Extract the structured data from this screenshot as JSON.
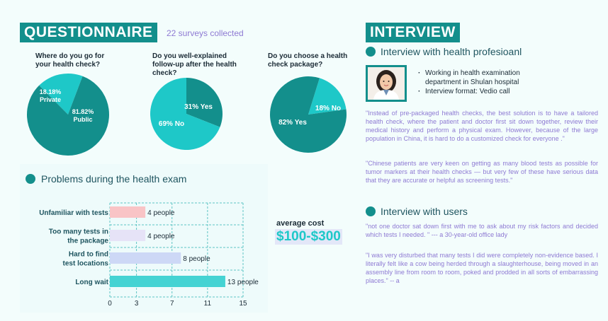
{
  "questionnaire": {
    "title": "QUESTIONNAIRE",
    "surveys": "22 surveys collected",
    "questions": [
      {
        "question": "Where do you go for your health check?",
        "slices": [
          {
            "label": "Private",
            "value": "18.18%",
            "fraction": 0.1818,
            "color": "#1ec8c8"
          },
          {
            "label": "Public",
            "value": "81.82%",
            "fraction": 0.8182,
            "color": "#138f8c"
          }
        ]
      },
      {
        "question": "Do you well-explained follow-up after the health check?",
        "slices": [
          {
            "label": "Yes",
            "value": "31%",
            "fraction": 0.31,
            "color": "#138f8c"
          },
          {
            "label": "No",
            "value": "69%",
            "fraction": 0.69,
            "color": "#1ec8c8"
          }
        ]
      },
      {
        "question": "Do you choose a health check package?",
        "slices": [
          {
            "label": "No",
            "value": "18%",
            "fraction": 0.18,
            "color": "#1ec8c8"
          },
          {
            "label": "Yes",
            "value": "82%",
            "fraction": 0.82,
            "color": "#138f8c"
          }
        ]
      }
    ]
  },
  "problems": {
    "title": "Problems during the health exam",
    "chart_data": {
      "type": "bar",
      "orientation": "horizontal",
      "categories": [
        "Unfamiliar with tests",
        "Too many tests in the package",
        "Hard to find test locations",
        "Long wait"
      ],
      "values": [
        4,
        4,
        8,
        13
      ],
      "value_labels": [
        "4 people",
        "4 people",
        "8 people",
        "13 people"
      ],
      "colors": [
        "#f9c4c6",
        "#e6e3f7",
        "#cdd8f6",
        "#45d3d3"
      ],
      "xticks": [
        0,
        3,
        7,
        11,
        15
      ],
      "xlim": [
        0,
        15
      ],
      "grid": true,
      "grid_style": "dashed",
      "grid_color": "#5fc4c4"
    }
  },
  "cost": {
    "label": "average cost",
    "value": "$100-$300"
  },
  "interview": {
    "title": "INTERVIEW",
    "professional": {
      "title": "Interview with health profesioanl",
      "bullets": [
        "Working in health examination department in Shulan hospital",
        "Interview format: Vedio call"
      ],
      "quotes": [
        "\"Instead of pre-packaged health checks, the best solution is to have a tailored health check, where the patient and doctor first sit down together, review their medical history and perform a physical exam. However, because of the large population in China, it is hard to do a customized check for everyone .\"",
        "\"Chinese patients are very keen on getting as many blood tests as possible for tumor markers at their health checks — but very few of these have serious data that they are accurate or helpful as screening tests.\""
      ]
    },
    "users": {
      "title": "Interview with users",
      "quotes": [
        "\"not one doctor sat down first with me to ask about my risk factors and decided which tests I needed. \" --- a 30-year-old office lady",
        "\"I was very disturbed that many tests I did were completely non-evidence based. I literally felt like a cow being herded through a slaughterhouse, being moved in an assembly line from room to room, poked and prodded in all sorts of embarrassing places.\" -- a"
      ]
    }
  }
}
